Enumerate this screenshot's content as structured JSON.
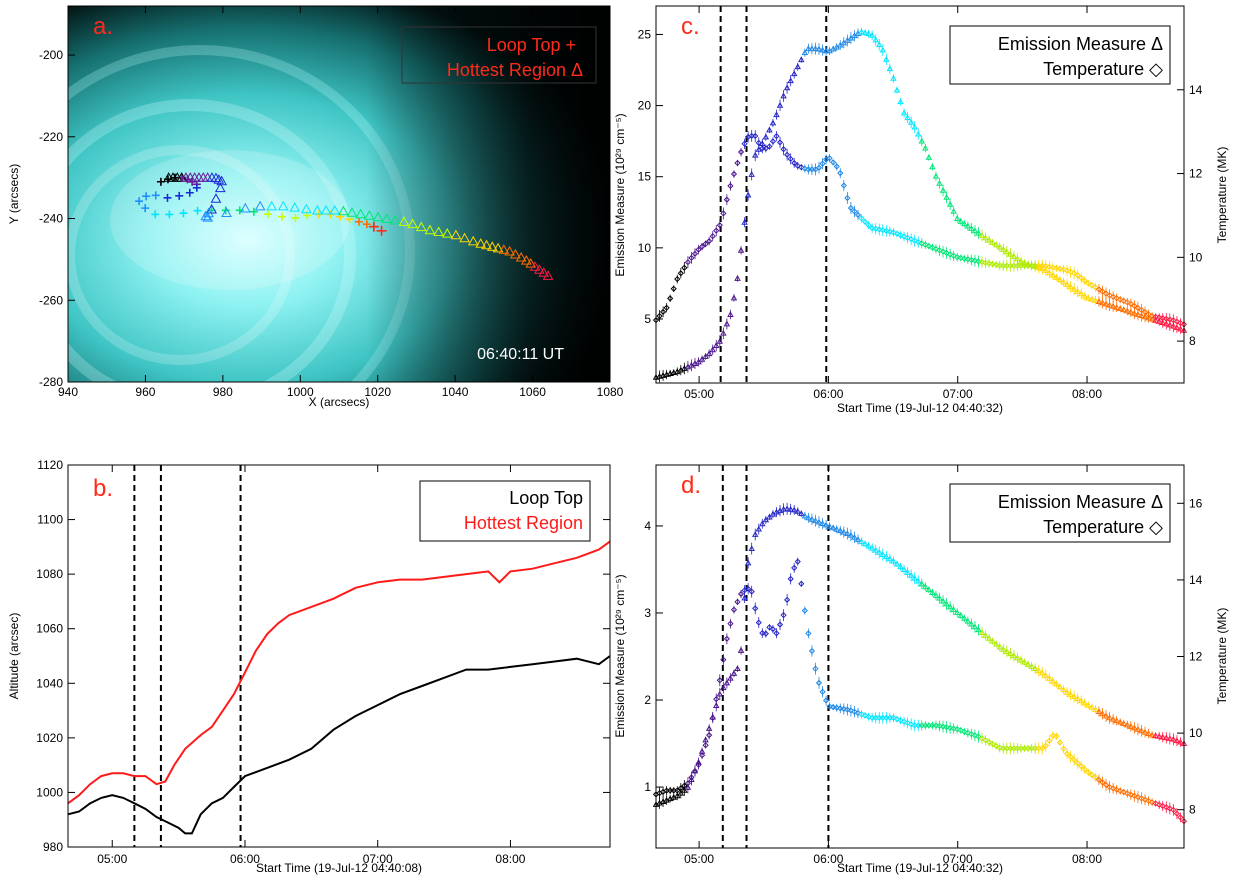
{
  "chart_data": [
    {
      "panel": "a",
      "type": "scatter",
      "panel_label": "a.",
      "xlabel": "X (arcsecs)",
      "ylabel": "Y (arcsecs)",
      "xlim": [
        940,
        1080
      ],
      "ylim": [
        -280,
        -188
      ],
      "xticks": [
        940,
        960,
        980,
        1000,
        1020,
        1040,
        1060,
        1080
      ],
      "yticks": [
        -200,
        -220,
        -240,
        -260,
        -280
      ],
      "timestamp": "06:40:11 UT",
      "background": "aia-94-cyan-image",
      "series": [
        {
          "name": "Loop Top",
          "marker": "+",
          "color": "#ff2a1a",
          "x": [
            964,
            967,
            970,
            972,
            974,
            971,
            966,
            961,
            958,
            962,
            968,
            974,
            980,
            986,
            992,
            998,
            1003,
            1008,
            1012,
            1016,
            1019
          ],
          "y": [
            -231,
            -230,
            -230,
            -231,
            -232,
            -234,
            -235,
            -234,
            -236,
            -239,
            -239,
            -238,
            -238,
            -238,
            -239,
            -240,
            -239,
            -239,
            -240,
            -241,
            -242
          ]
        },
        {
          "name": "Hottest Region",
          "marker": "triangle",
          "color": "#ff2a1a",
          "x": [
            966,
            969,
            972,
            975,
            978,
            980,
            977,
            975,
            988,
            996,
            1004,
            1010,
            1016,
            1022,
            1028,
            1034,
            1040,
            1046,
            1050,
            1054,
            1058,
            1061,
            1064
          ],
          "y": [
            -230,
            -230,
            -230,
            -230,
            -230,
            -231,
            -238,
            -240,
            -237,
            -237,
            -238,
            -238,
            -239,
            -240,
            -241,
            -243,
            -244,
            -246,
            -247,
            -248,
            -250,
            -252,
            -254
          ]
        }
      ],
      "colors": [
        "#000000",
        "#6a1b9a",
        "#1a2bd8",
        "#1e90ff",
        "#00e5ff",
        "#00e676",
        "#c6ff00",
        "#ffd600",
        "#ff6d00",
        "#ff1744"
      ]
    },
    {
      "panel": "b",
      "type": "line",
      "panel_label": "b.",
      "xlabel": "Start Time (19-Jul-12 04:40:08)",
      "ylabel": "Altitude (arcsec)",
      "xlim_minutes": [
        280,
        525
      ],
      "ylim": [
        980,
        1120
      ],
      "xtick_minutes": [
        300,
        360,
        420,
        480
      ],
      "xtick_labels": [
        "05:00",
        "06:00",
        "07:00",
        "08:00"
      ],
      "yticks": [
        980,
        1000,
        1020,
        1040,
        1060,
        1080,
        1100,
        1120
      ],
      "vlines_minutes": [
        310,
        322,
        358
      ],
      "series": [
        {
          "name": "Loop Top",
          "color": "#000000",
          "x": [
            280,
            285,
            290,
            295,
            300,
            305,
            310,
            315,
            320,
            325,
            330,
            333,
            336,
            340,
            345,
            350,
            355,
            360,
            370,
            380,
            390,
            400,
            410,
            420,
            430,
            440,
            450,
            460,
            470,
            480,
            490,
            500,
            510,
            520,
            525
          ],
          "y": [
            992,
            993,
            996,
            998,
            999,
            998,
            996,
            994,
            991,
            989,
            987,
            985,
            985,
            992,
            996,
            998,
            1002,
            1006,
            1009,
            1012,
            1016,
            1023,
            1028,
            1032,
            1036,
            1039,
            1042,
            1045,
            1045,
            1046,
            1047,
            1048,
            1049,
            1047,
            1050
          ]
        },
        {
          "name": "Hottest Region",
          "color": "#ff1a1a",
          "x": [
            280,
            285,
            290,
            295,
            300,
            305,
            310,
            315,
            320,
            324,
            328,
            333,
            340,
            345,
            350,
            355,
            360,
            365,
            370,
            375,
            380,
            390,
            400,
            410,
            420,
            430,
            440,
            450,
            460,
            470,
            475,
            480,
            490,
            500,
            510,
            520,
            525
          ],
          "y": [
            996,
            999,
            1003,
            1006,
            1007,
            1007,
            1006,
            1006,
            1003,
            1004,
            1010,
            1016,
            1021,
            1024,
            1030,
            1036,
            1044,
            1052,
            1058,
            1062,
            1065,
            1068,
            1071,
            1075,
            1077,
            1078,
            1078,
            1079,
            1080,
            1081,
            1077,
            1081,
            1082,
            1084,
            1086,
            1089,
            1092
          ]
        }
      ]
    },
    {
      "panel": "c",
      "type": "scatter",
      "panel_label": "c.",
      "xlabel": "Start Time (19-Jul-12 04:40:32)",
      "ylabel": "Emission Measure (10²⁹ cm⁻⁵)",
      "y2label": "Temperature (MK)",
      "xlim_minutes": [
        280,
        525
      ],
      "ylim": [
        0.5,
        27
      ],
      "y2lim": [
        7,
        16
      ],
      "xtick_minutes": [
        300,
        360,
        420,
        480
      ],
      "xtick_labels": [
        "05:00",
        "06:00",
        "07:00",
        "08:00"
      ],
      "yticks": [
        5,
        10,
        15,
        20,
        25
      ],
      "y2ticks": [
        8,
        10,
        12,
        14
      ],
      "vlines_minutes": [
        310,
        322,
        359
      ],
      "series": [
        {
          "name": "Emission Measure",
          "marker": "triangle",
          "axis": "left",
          "x": [
            280,
            290,
            300,
            305,
            310,
            315,
            318,
            320,
            323,
            326,
            330,
            335,
            340,
            345,
            350,
            355,
            360,
            365,
            370,
            375,
            380,
            385,
            390,
            395,
            400,
            405,
            410,
            420,
            430,
            440,
            450,
            460,
            470,
            480,
            490,
            500,
            510,
            520,
            525
          ],
          "y": [
            0.9,
            1.3,
            2.0,
            2.6,
            3.5,
            5.5,
            8.0,
            10.5,
            14.0,
            16.5,
            17.5,
            19.0,
            21.0,
            22.5,
            24.0,
            24.0,
            23.8,
            24.2,
            24.7,
            25.2,
            25.0,
            24.0,
            22.0,
            19.5,
            18.5,
            17.0,
            15.0,
            12.0,
            11.0,
            10.0,
            9.0,
            8.5,
            7.5,
            6.5,
            6.0,
            5.5,
            5.0,
            4.5,
            4.2
          ]
        },
        {
          "name": "Temperature",
          "marker": "diamond",
          "axis": "right",
          "x": [
            280,
            285,
            290,
            295,
            300,
            305,
            310,
            315,
            320,
            323,
            326,
            329,
            332,
            336,
            340,
            345,
            350,
            355,
            360,
            365,
            370,
            380,
            390,
            400,
            410,
            420,
            430,
            440,
            450,
            460,
            470,
            475,
            480,
            490,
            500,
            510,
            520,
            525
          ],
          "y": [
            8.5,
            8.8,
            9.5,
            9.9,
            10.2,
            10.4,
            10.8,
            11.8,
            12.6,
            12.9,
            12.9,
            12.6,
            12.6,
            12.9,
            12.5,
            12.2,
            12.1,
            12.1,
            12.4,
            12.1,
            11.2,
            10.7,
            10.6,
            10.4,
            10.2,
            10.0,
            9.9,
            9.8,
            9.8,
            9.8,
            9.7,
            9.6,
            9.4,
            9.1,
            8.9,
            8.6,
            8.5,
            8.4
          ]
        }
      ],
      "colors": [
        "#000000",
        "#4a148c",
        "#2424c8",
        "#1e88e5",
        "#00e5ff",
        "#00e676",
        "#aeea00",
        "#ffd600",
        "#ff6d00",
        "#ff1744"
      ]
    },
    {
      "panel": "d",
      "type": "scatter",
      "panel_label": "d.",
      "xlabel": "Start Time (19-Jul-12 04:40:32)",
      "ylabel": "Emission Measure (10²⁹ cm⁻⁵)",
      "y2label": "Temperature (MK)",
      "xlim_minutes": [
        280,
        525
      ],
      "ylim": [
        0.3,
        4.7
      ],
      "y2lim": [
        7,
        17
      ],
      "xtick_minutes": [
        300,
        360,
        420,
        480
      ],
      "xtick_labels": [
        "05:00",
        "06:00",
        "07:00",
        "08:00"
      ],
      "yticks": [
        1,
        2,
        3,
        4
      ],
      "y2ticks": [
        8,
        10,
        12,
        14,
        16
      ],
      "vlines_minutes": [
        311,
        322,
        360
      ],
      "series": [
        {
          "name": "Emission Measure",
          "marker": "triangle",
          "axis": "left",
          "x": [
            280,
            285,
            290,
            295,
            300,
            305,
            310,
            313,
            316,
            319,
            322,
            326,
            330,
            335,
            340,
            345,
            350,
            355,
            360,
            370,
            380,
            390,
            400,
            410,
            420,
            430,
            440,
            450,
            460,
            470,
            480,
            490,
            500,
            510,
            520,
            525
          ],
          "y": [
            0.8,
            0.85,
            0.9,
            1.0,
            1.3,
            1.7,
            2.1,
            2.2,
            2.3,
            2.4,
            3.5,
            3.9,
            4.05,
            4.15,
            4.2,
            4.18,
            4.1,
            4.05,
            4.0,
            3.9,
            3.75,
            3.6,
            3.4,
            3.2,
            3.0,
            2.8,
            2.6,
            2.45,
            2.3,
            2.1,
            1.95,
            1.8,
            1.7,
            1.6,
            1.55,
            1.5
          ]
        },
        {
          "name": "Temperature",
          "marker": "diamond",
          "axis": "right",
          "x": [
            280,
            285,
            290,
            295,
            300,
            305,
            310,
            313,
            316,
            320,
            324,
            327,
            330,
            333,
            336,
            340,
            343,
            346,
            350,
            355,
            360,
            370,
            380,
            390,
            400,
            410,
            420,
            430,
            440,
            450,
            460,
            465,
            470,
            480,
            490,
            500,
            510,
            520,
            525
          ],
          "y": [
            8.4,
            8.5,
            8.5,
            8.7,
            9.2,
            10.0,
            11.5,
            12.5,
            13.2,
            13.7,
            13.8,
            13.0,
            12.5,
            12.8,
            12.6,
            13.2,
            14.2,
            14.5,
            12.8,
            11.4,
            10.7,
            10.6,
            10.4,
            10.4,
            10.2,
            10.2,
            10.1,
            9.9,
            9.6,
            9.6,
            9.6,
            10.0,
            9.5,
            9.0,
            8.6,
            8.4,
            8.2,
            8.0,
            7.7
          ]
        }
      ],
      "colors": [
        "#000000",
        "#4a148c",
        "#2424c8",
        "#1e88e5",
        "#00e5ff",
        "#00e676",
        "#aeea00",
        "#ffd600",
        "#ff6d00",
        "#ff1744"
      ]
    }
  ],
  "legends": {
    "a": {
      "loop_top": "Loop Top +",
      "hottest": "Hottest Region Δ"
    },
    "b": {
      "loop_top": "Loop Top",
      "hottest": "Hottest Region"
    },
    "c": {
      "em": "Emission Measure Δ",
      "temp": "Temperature ◇"
    },
    "d": {
      "em": "Emission Measure Δ",
      "temp": "Temperature ◇"
    }
  }
}
